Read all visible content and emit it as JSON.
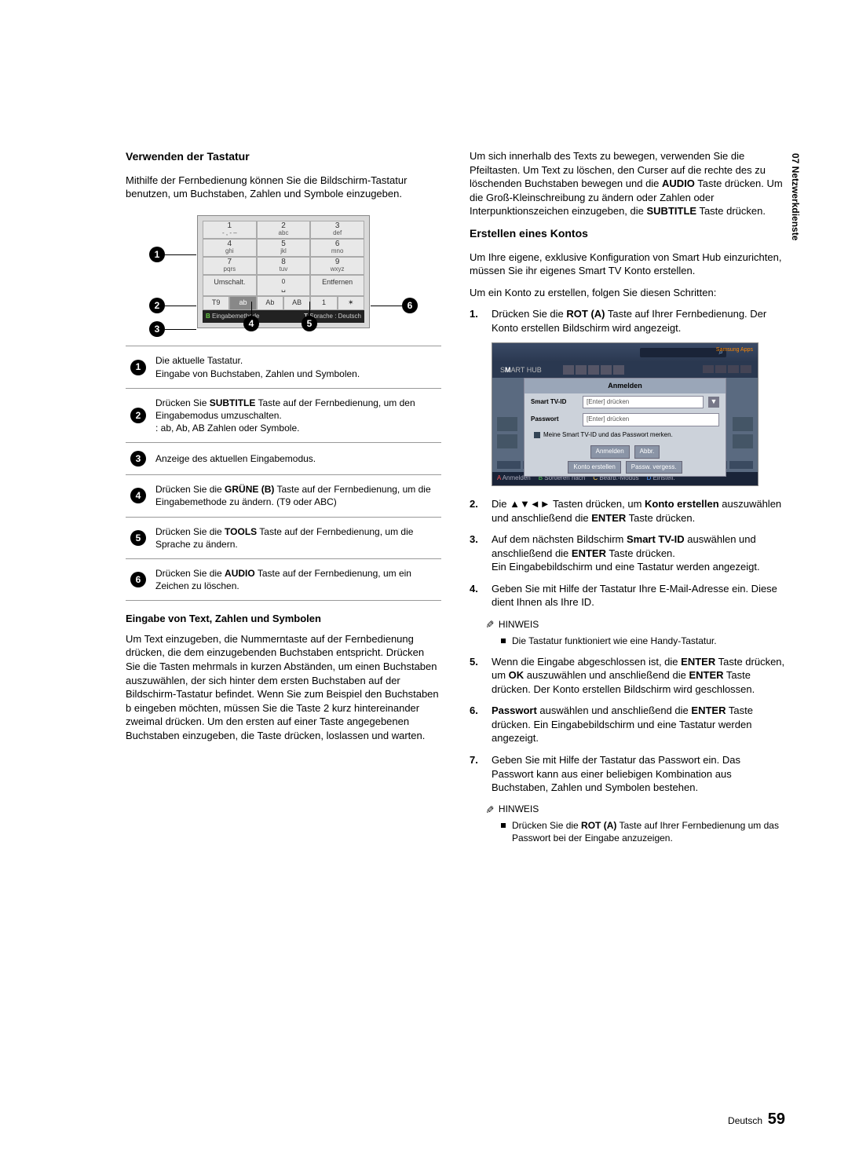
{
  "sideTab": "07  Netzwerkdienste",
  "left": {
    "heading": "Verwenden der Tastatur",
    "intro": "Mithilfe der Fernbedienung können Sie die Bildschirm-Tastatur benutzen, um Buchstaben, Zahlen und Symbole einzugeben.",
    "keypad": {
      "rows": [
        [
          {
            "n": "1",
            "l": "- , - –"
          },
          {
            "n": "2",
            "l": "abc"
          },
          {
            "n": "3",
            "l": "def"
          }
        ],
        [
          {
            "n": "4",
            "l": "ghi"
          },
          {
            "n": "5",
            "l": "jkl"
          },
          {
            "n": "6",
            "l": "mno"
          }
        ],
        [
          {
            "n": "7",
            "l": "pqrs"
          },
          {
            "n": "8",
            "l": "tuv"
          },
          {
            "n": "9",
            "l": "wxyz"
          }
        ]
      ],
      "wide": [
        "Umschalt.",
        "␣",
        "Entfernen"
      ],
      "zero": "0",
      "mode": [
        "T9",
        "ab",
        "Ab",
        "AB",
        "1",
        "✶"
      ],
      "foot": {
        "left": "Eingabemethode",
        "right": "Sprache : Deutsch",
        "b": "B",
        "t": "T"
      }
    },
    "legend": [
      {
        "n": "1",
        "t": "Die aktuelle Tastatur.\nEingabe von Buchstaben, Zahlen und Symbolen."
      },
      {
        "n": "2",
        "t": "Drücken Sie <b>SUBTITLE</b> Taste auf der Fernbedienung, um den Eingabemodus umzuschalten.\n: ab, Ab, AB Zahlen oder Symbole."
      },
      {
        "n": "3",
        "t": "Anzeige des aktuellen Eingabemodus."
      },
      {
        "n": "4",
        "t": "Drücken Sie die <b>GRÜNE (B)</b> Taste auf der Fernbedienung, um die Eingabemethode zu ändern. (T9 oder ABC)"
      },
      {
        "n": "5",
        "t": "Drücken Sie die <b>TOOLS</b> Taste auf der Fernbedienung, um die Sprache zu ändern."
      },
      {
        "n": "6",
        "t": "Drücken Sie die <b>AUDIO</b> Taste auf der Fernbedienung, um ein Zeichen zu löschen."
      }
    ],
    "sub1": "Eingabe von Text, Zahlen und Symbolen",
    "p1": "Um Text einzugeben, die Nummerntaste auf der Fernbedienung drücken, die dem einzugebenden Buchstaben entspricht. Drücken Sie die Tasten mehrmals in kurzen Abständen, um einen Buchstaben auszuwählen, der sich hinter dem ersten Buchstaben auf der Bildschirm-Tastatur befindet. Wenn Sie zum Beispiel den Buchstaben b eingeben möchten, müssen Sie die Taste 2 kurz hintereinander zweimal drücken. Um den ersten auf einer Taste angegebenen Buchstaben einzugeben, die Taste drücken, loslassen und warten."
  },
  "right": {
    "p0": "Um sich innerhalb des Texts zu bewegen, verwenden Sie die Pfeiltasten. Um Text zu löschen, den Curser auf die rechte des zu löschenden Buchstaben bewegen und die <b>AUDIO</b> Taste drücken. Um die Groß-Kleinschreibung zu ändern oder Zahlen oder Interpunktionszeichen einzugeben, die <b>SUBTITLE</b> Taste drücken.",
    "heading": "Erstellen eines Kontos",
    "p1": "Um Ihre eigene, exklusive Konfiguration von Smart Hub einzurichten, müssen Sie ihr eigenes Smart TV Konto erstellen.",
    "p2": "Um ein Konto zu erstellen, folgen Sie diesen Schritten:",
    "steps1": [
      {
        "n": "1.",
        "t": "Drücken Sie die <b>ROT (A)</b> Taste auf Ihrer Fernbedienung. Der Konto erstellen Bildschirm wird angezeigt."
      }
    ],
    "hub": {
      "logo": "S  ART HUB",
      "logoBold": "M",
      "appsLabel": "Samsung Apps",
      "dialogTitle": "Anmelden",
      "fields": [
        {
          "label": "Smart TV-ID",
          "ph": "[Enter] drücken",
          "dd": true
        },
        {
          "label": "Passwort",
          "ph": "[Enter] drücken",
          "dd": false
        }
      ],
      "check": "Meine Smart TV-ID und das Passwort merken.",
      "btns1": [
        "Anmelden",
        "Abbr."
      ],
      "btns2": [
        "Konto erstellen",
        "Passw. vergess."
      ],
      "foot": [
        {
          "c": "c-a",
          "k": "A",
          "t": "Anmelden"
        },
        {
          "c": "c-b",
          "k": "B",
          "t": "Sortieren nach"
        },
        {
          "c": "c-c",
          "k": "C",
          "t": "Bearb.-Modus"
        },
        {
          "c": "c-d",
          "k": "D",
          "t": "Einstell."
        }
      ]
    },
    "steps2": [
      {
        "n": "2.",
        "t": "Die <span class='arrows'>▲▼◄►</span> Tasten drücken, um <b>Konto erstellen</b> auszuwählen und anschließend die <b>ENTER</b> Taste drücken."
      },
      {
        "n": "3.",
        "t": "Auf dem nächsten Bildschirm <b>Smart TV-ID</b> auswählen und anschließend die <b>ENTER</b> Taste drücken.\nEin Eingabebildschirm und eine Tastatur werden angezeigt."
      },
      {
        "n": "4.",
        "t": "Geben Sie mit Hilfe der Tastatur Ihre E-Mail-Adresse ein. Diese dient Ihnen als Ihre ID."
      }
    ],
    "note1Head": "HINWEIS",
    "note1": "Die Tastatur funktioniert wie eine Handy-Tastatur.",
    "steps3": [
      {
        "n": "5.",
        "t": "Wenn die Eingabe abgeschlossen ist, die <b>ENTER</b> Taste drücken, um <b>OK</b> auszuwählen und anschließend die <b>ENTER</b> Taste drücken. Der Konto erstellen Bildschirm wird geschlossen."
      },
      {
        "n": "6.",
        "t": "<b>Passwort</b> auswählen und anschließend die <b>ENTER</b> Taste drücken. Ein Eingabebildschirm und eine Tastatur werden angezeigt."
      },
      {
        "n": "7.",
        "t": "Geben Sie mit Hilfe der Tastatur das Passwort ein. Das Passwort kann aus einer beliebigen Kombination aus Buchstaben, Zahlen und Symbolen bestehen."
      }
    ],
    "note2Head": "HINWEIS",
    "note2": "Drücken Sie die <b>ROT (A)</b> Taste auf Ihrer Fernbedienung um das Passwort bei der Eingabe anzuzeigen."
  },
  "footer": {
    "lang": "Deutsch",
    "page": "59"
  }
}
